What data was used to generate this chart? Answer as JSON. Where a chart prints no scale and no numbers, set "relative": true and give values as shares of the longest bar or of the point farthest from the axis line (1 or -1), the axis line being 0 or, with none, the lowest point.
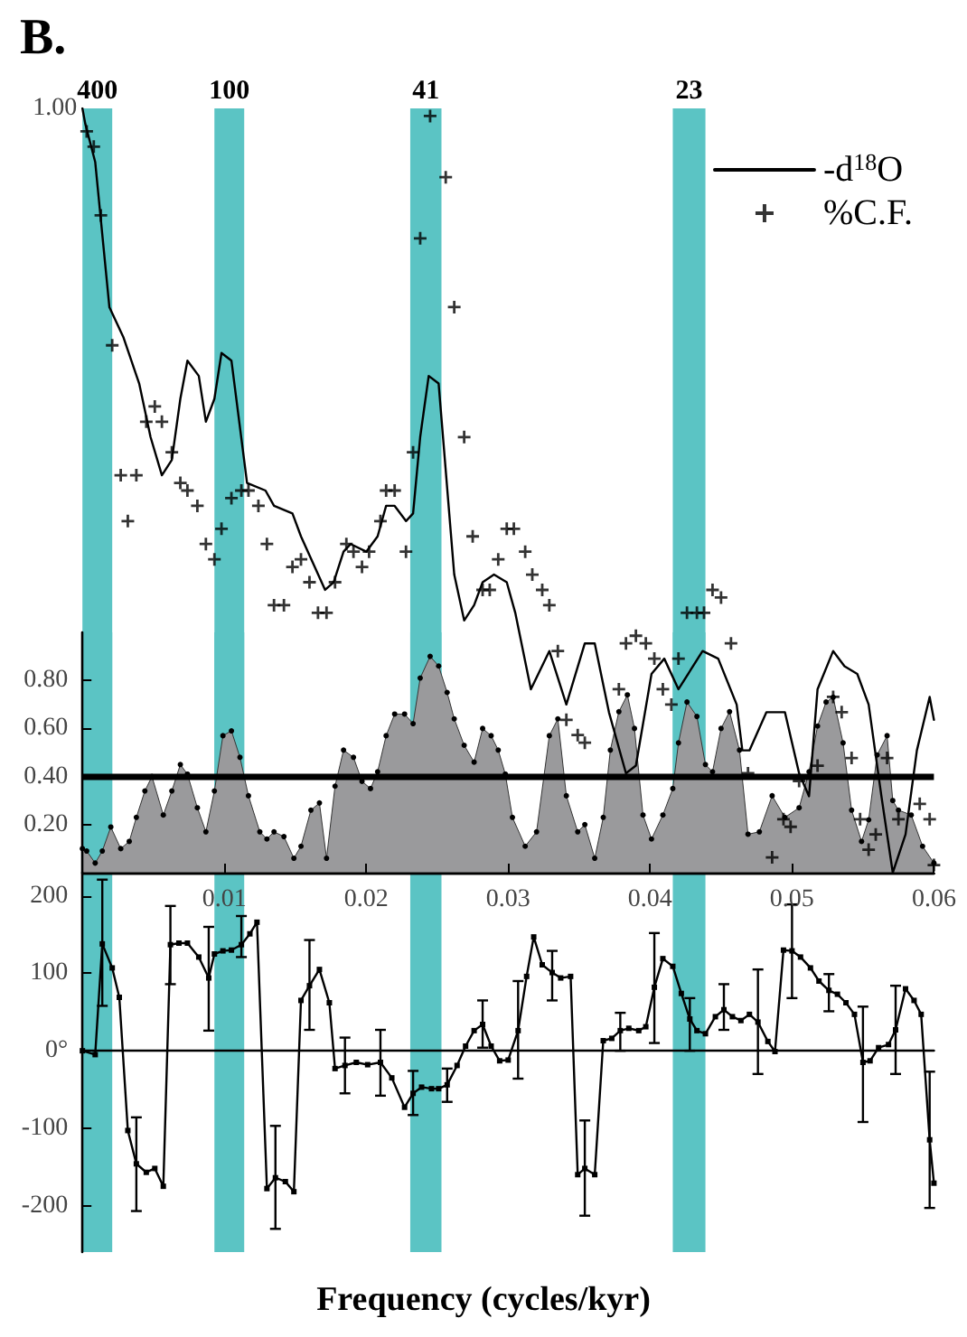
{
  "chart_data": [
    {
      "type": "line",
      "title": "B.",
      "relative": true,
      "xlim": [
        0,
        0.06
      ],
      "tick_labels": false,
      "legend": "top right",
      "annotations": [
        "1.00"
      ],
      "bands": [
        {
          "axis": "x",
          "from": 0,
          "to": 0.0021,
          "label": "400",
          "color": "#5bc4c4"
        },
        {
          "axis": "x",
          "from": 0.0093,
          "to": 0.0114,
          "label": "100",
          "color": "#5bc4c4"
        },
        {
          "axis": "x",
          "from": 0.0231,
          "to": 0.0253,
          "label": "41",
          "color": "#5bc4c4"
        },
        {
          "axis": "x",
          "from": 0.0416,
          "to": 0.0439,
          "label": "23",
          "color": "#5bc4c4"
        }
      ],
      "series": [
        {
          "name": "-d$^{18}$O",
          "type": "line",
          "color": "#000000",
          "marker": "none",
          "x": [
            0,
            0.0002,
            0.0009,
            0.0019,
            0.0029,
            0.004,
            0.0048,
            0.0056,
            0.0063,
            0.0069,
            0.0074,
            0.0082,
            0.0087,
            0.0093,
            0.0098,
            0.0105,
            0.0116,
            0.0129,
            0.0135,
            0.0148,
            0.0154,
            0.0171,
            0.0177,
            0.0184,
            0.0189,
            0.02,
            0.0208,
            0.0214,
            0.022,
            0.0228,
            0.0233,
            0.0238,
            0.0244,
            0.0251,
            0.0262,
            0.0269,
            0.0276,
            0.0282,
            0.029,
            0.0299,
            0.0305,
            0.0316,
            0.0329,
            0.0341,
            0.0354,
            0.0361,
            0.0371,
            0.0383,
            0.039,
            0.0401,
            0.041,
            0.042,
            0.0437,
            0.0448,
            0.0461,
            0.0465,
            0.047,
            0.0482,
            0.0495,
            0.0505,
            0.0512,
            0.0518,
            0.0529,
            0.0537,
            0.0546,
            0.0554,
            0.0563,
            0.0571,
            0.058,
            0.0588,
            0.0597,
            0.06
          ],
          "values": [
            1.0,
            0.98,
            0.93,
            0.74,
            0.7,
            0.64,
            0.57,
            0.52,
            0.54,
            0.62,
            0.67,
            0.65,
            0.59,
            0.62,
            0.68,
            0.67,
            0.51,
            0.5,
            0.48,
            0.47,
            0.44,
            0.37,
            0.38,
            0.42,
            0.43,
            0.42,
            0.44,
            0.48,
            0.48,
            0.46,
            0.47,
            0.57,
            0.65,
            0.64,
            0.39,
            0.33,
            0.35,
            0.38,
            0.39,
            0.38,
            0.34,
            0.24,
            0.29,
            0.22,
            0.3,
            0.3,
            0.21,
            0.13,
            0.14,
            0.26,
            0.28,
            0.24,
            0.29,
            0.28,
            0.22,
            0.16,
            0.16,
            0.21,
            0.21,
            0.13,
            0.1,
            0.24,
            0.29,
            0.27,
            0.26,
            0.22,
            0.1,
            0.0,
            0.05,
            0.16,
            0.23,
            0.2
          ]
        },
        {
          "name": "%C.F.",
          "type": "scatter",
          "color": "#000000",
          "marker": "cross",
          "x": [
            0.0003,
            0.0008,
            0.0013,
            0.0021,
            0.0027,
            0.0032,
            0.0038,
            0.0045,
            0.0051,
            0.0056,
            0.0063,
            0.0069,
            0.0074,
            0.0081,
            0.0087,
            0.0093,
            0.0098,
            0.0105,
            0.0112,
            0.0117,
            0.0124,
            0.013,
            0.0135,
            0.0142,
            0.0148,
            0.0154,
            0.016,
            0.0166,
            0.0172,
            0.0178,
            0.0186,
            0.0191,
            0.0197,
            0.0202,
            0.021,
            0.0214,
            0.022,
            0.0228,
            0.0233,
            0.0238,
            0.0245,
            0.0256,
            0.0262,
            0.0269,
            0.0275,
            0.0282,
            0.0287,
            0.0293,
            0.0299,
            0.0304,
            0.0312,
            0.0317,
            0.0324,
            0.0329,
            0.0335,
            0.0341,
            0.0349,
            0.0354,
            0.0378,
            0.0383,
            0.039,
            0.0397,
            0.0403,
            0.0409,
            0.0415,
            0.042,
            0.0426,
            0.0433,
            0.0438,
            0.0444,
            0.045,
            0.0457,
            0.0469,
            0.0486,
            0.0494,
            0.0499,
            0.0505,
            0.0518,
            0.0529,
            0.0535,
            0.0542,
            0.0548,
            0.0554,
            0.0559,
            0.0567,
            0.0575,
            0.059,
            0.0597,
            0.06
          ],
          "values": [
            0.97,
            0.95,
            0.86,
            0.69,
            0.52,
            0.46,
            0.52,
            0.59,
            0.61,
            0.59,
            0.55,
            0.51,
            0.5,
            0.48,
            0.43,
            0.41,
            0.45,
            0.49,
            0.5,
            0.5,
            0.48,
            0.43,
            0.35,
            0.35,
            0.4,
            0.41,
            0.38,
            0.34,
            0.34,
            0.38,
            0.43,
            0.42,
            0.4,
            0.42,
            0.46,
            0.5,
            0.5,
            0.42,
            0.55,
            0.83,
            0.99,
            0.91,
            0.74,
            0.57,
            0.44,
            0.37,
            0.37,
            0.41,
            0.45,
            0.45,
            0.42,
            0.39,
            0.37,
            0.35,
            0.29,
            0.2,
            0.18,
            0.17,
            0.24,
            0.3,
            0.31,
            0.3,
            0.28,
            0.24,
            0.22,
            0.28,
            0.34,
            0.34,
            0.34,
            0.37,
            0.36,
            0.3,
            0.13,
            0.02,
            0.07,
            0.06,
            0.12,
            0.14,
            0.23,
            0.21,
            0.15,
            0.07,
            0.03,
            0.05,
            0.15,
            0.07,
            0.09,
            0.07,
            0.01
          ]
        }
      ]
    },
    {
      "type": "area",
      "xlim": [
        0,
        0.06
      ],
      "xticks": [
        0.01,
        0.02,
        0.03,
        0.04,
        0.05,
        0.06
      ],
      "ylim": [
        0,
        1
      ],
      "yticks": [
        {
          "value": 0.2,
          "label": "0.20"
        },
        {
          "value": 0.4,
          "label": "0.40"
        },
        {
          "value": 0.6,
          "label": "0.60"
        },
        {
          "value": 0.8,
          "label": "0.80"
        }
      ],
      "bands": [
        {
          "axis": "x",
          "from": 0,
          "to": 0.0021,
          "color": "#5bc4c4"
        },
        {
          "axis": "x",
          "from": 0.0093,
          "to": 0.0114,
          "color": "#5bc4c4"
        },
        {
          "axis": "x",
          "from": 0.0231,
          "to": 0.0253,
          "color": "#5bc4c4"
        },
        {
          "axis": "x",
          "from": 0.0416,
          "to": 0.0439,
          "color": "#5bc4c4"
        }
      ],
      "ref_lines": [
        {
          "axis": "y",
          "value": 0.4,
          "color": "#000000"
        }
      ],
      "series": [
        {
          "color": "#9a9a9c",
          "marker": "circle",
          "x": [
            0,
            0.0003,
            0.0009,
            0.0014,
            0.002,
            0.0027,
            0.0033,
            0.0038,
            0.0044,
            0.0049,
            0.0057,
            0.0063,
            0.0069,
            0.0074,
            0.0081,
            0.0087,
            0.0093,
            0.0099,
            0.0105,
            0.0111,
            0.0117,
            0.0125,
            0.013,
            0.0135,
            0.0142,
            0.0149,
            0.0154,
            0.0161,
            0.0167,
            0.0172,
            0.0178,
            0.0184,
            0.0191,
            0.0197,
            0.0203,
            0.0208,
            0.0214,
            0.022,
            0.0227,
            0.0233,
            0.0238,
            0.0245,
            0.0251,
            0.0257,
            0.0262,
            0.0269,
            0.0276,
            0.0282,
            0.0288,
            0.0293,
            0.0298,
            0.0303,
            0.0312,
            0.032,
            0.0329,
            0.0335,
            0.0341,
            0.0349,
            0.0354,
            0.0361,
            0.0367,
            0.0372,
            0.0378,
            0.0384,
            0.0389,
            0.0395,
            0.0401,
            0.0409,
            0.0416,
            0.042,
            0.0426,
            0.0433,
            0.0439,
            0.0444,
            0.045,
            0.0456,
            0.0463,
            0.0469,
            0.0477,
            0.0486,
            0.0495,
            0.0505,
            0.0512,
            0.0518,
            0.0524,
            0.0529,
            0.0536,
            0.0542,
            0.0549,
            0.0554,
            0.056,
            0.0567,
            0.0571,
            0.0575,
            0.0584,
            0.0592,
            0.06
          ],
          "values": [
            0.1,
            0.09,
            0.04,
            0.09,
            0.19,
            0.1,
            0.13,
            0.23,
            0.34,
            0.4,
            0.24,
            0.34,
            0.45,
            0.41,
            0.27,
            0.17,
            0.34,
            0.57,
            0.59,
            0.48,
            0.32,
            0.17,
            0.14,
            0.17,
            0.15,
            0.06,
            0.11,
            0.26,
            0.29,
            0.06,
            0.36,
            0.51,
            0.48,
            0.38,
            0.35,
            0.42,
            0.57,
            0.66,
            0.66,
            0.62,
            0.81,
            0.9,
            0.86,
            0.75,
            0.64,
            0.53,
            0.46,
            0.6,
            0.57,
            0.51,
            0.41,
            0.23,
            0.11,
            0.17,
            0.57,
            0.64,
            0.32,
            0.17,
            0.2,
            0.06,
            0.23,
            0.51,
            0.67,
            0.74,
            0.6,
            0.24,
            0.14,
            0.24,
            0.35,
            0.54,
            0.71,
            0.65,
            0.45,
            0.42,
            0.6,
            0.67,
            0.51,
            0.16,
            0.17,
            0.32,
            0.23,
            0.27,
            0.42,
            0.61,
            0.71,
            0.73,
            0.54,
            0.26,
            0.13,
            0.22,
            0.49,
            0.57,
            0.3,
            0.26,
            0.24,
            0.11,
            0.04
          ]
        }
      ]
    },
    {
      "type": "line",
      "xlabel": "Frequency (cycles/kyr)",
      "xlim": [
        0,
        0.06
      ],
      "ylim": [
        -260,
        230
      ],
      "yticks": [
        200,
        100,
        {
          "value": 0,
          "label": "0°"
        },
        -100,
        -200
      ],
      "tick_labels": "y",
      "bands": [
        {
          "axis": "x",
          "from": 0,
          "to": 0.0021,
          "color": "#5bc4c4"
        },
        {
          "axis": "x",
          "from": 0.0093,
          "to": 0.0114,
          "color": "#5bc4c4"
        },
        {
          "axis": "x",
          "from": 0.0231,
          "to": 0.0253,
          "color": "#5bc4c4"
        },
        {
          "axis": "x",
          "from": 0.0416,
          "to": 0.0439,
          "color": "#5bc4c4"
        }
      ],
      "series": [
        {
          "color": "#000000",
          "marker": "square",
          "x": [
            0,
            0.0009,
            0.0014,
            0.0021,
            0.0026,
            0.0032,
            0.0038,
            0.0045,
            0.0051,
            0.0057,
            0.0062,
            0.0068,
            0.0074,
            0.0082,
            0.0089,
            0.0093,
            0.0099,
            0.0105,
            0.0112,
            0.0118,
            0.0123,
            0.013,
            0.0136,
            0.0143,
            0.0149,
            0.0154,
            0.016,
            0.0167,
            0.0174,
            0.0178,
            0.0185,
            0.0193,
            0.0201,
            0.021,
            0.0218,
            0.0227,
            0.0233,
            0.0239,
            0.0246,
            0.0251,
            0.0257,
            0.0264,
            0.027,
            0.0276,
            0.0282,
            0.0288,
            0.0294,
            0.03,
            0.0307,
            0.0313,
            0.0318,
            0.0324,
            0.0331,
            0.0337,
            0.0344,
            0.0349,
            0.0354,
            0.0361,
            0.0367,
            0.0373,
            0.0379,
            0.0385,
            0.0392,
            0.0397,
            0.0403,
            0.0409,
            0.0416,
            0.0422,
            0.0428,
            0.0433,
            0.0439,
            0.0446,
            0.0452,
            0.0458,
            0.0464,
            0.047,
            0.0476,
            0.0483,
            0.0488,
            0.0494,
            0.05,
            0.0506,
            0.0513,
            0.0519,
            0.0526,
            0.0532,
            0.0538,
            0.0544,
            0.055,
            0.0555,
            0.0561,
            0.0568,
            0.0573,
            0.058,
            0.0586,
            0.0591,
            0.0597,
            0.06
          ],
          "values": [
            0,
            -5,
            138,
            107,
            69,
            -103,
            -146,
            -157,
            -152,
            -175,
            137,
            139,
            139,
            121,
            94,
            125,
            129,
            130,
            137,
            151,
            166,
            -178,
            -164,
            -169,
            -182,
            65,
            84,
            105,
            62,
            -23,
            -19,
            -15,
            -18,
            -15,
            -35,
            -73,
            -55,
            -47,
            -49,
            -49,
            -44,
            -19,
            6,
            26,
            34,
            6,
            -13,
            -12,
            26,
            96,
            147,
            111,
            101,
            94,
            96,
            -160,
            -152,
            -160,
            13,
            16,
            26,
            29,
            26,
            31,
            82,
            119,
            109,
            74,
            41,
            26,
            22,
            44,
            53,
            44,
            39,
            47,
            37,
            12,
            -1,
            130,
            129,
            121,
            107,
            90,
            78,
            73,
            62,
            47,
            -15,
            -13,
            4,
            8,
            27,
            80,
            65,
            47,
            -115,
            -171
          ],
          "errors": [
            null,
            null,
            [
              58,
              221
            ],
            null,
            null,
            null,
            [
              -207,
              -86
            ],
            null,
            null,
            null,
            [
              86,
              187
            ],
            null,
            null,
            null,
            [
              26,
              160
            ],
            null,
            null,
            null,
            [
              121,
              174
            ],
            null,
            null,
            null,
            [
              -230,
              -97
            ],
            null,
            null,
            null,
            [
              27,
              143
            ],
            null,
            null,
            null,
            [
              -55,
              17
            ],
            null,
            null,
            [
              -58,
              27
            ],
            null,
            null,
            [
              -83,
              -26
            ],
            null,
            null,
            null,
            [
              -66,
              -23
            ],
            null,
            null,
            null,
            [
              4,
              65
            ],
            null,
            null,
            null,
            [
              -36,
              90
            ],
            null,
            null,
            null,
            [
              65,
              129
            ],
            null,
            null,
            null,
            [
              -213,
              -90
            ],
            null,
            null,
            null,
            [
              0,
              49
            ],
            null,
            null,
            null,
            [
              10,
              152
            ],
            null,
            null,
            null,
            [
              0,
              68
            ],
            null,
            null,
            null,
            [
              27,
              86
            ],
            null,
            null,
            null,
            [
              -30,
              105
            ],
            null,
            null,
            null,
            [
              68,
              189
            ],
            null,
            null,
            null,
            [
              51,
              99
            ],
            null,
            null,
            null,
            [
              -92,
              57
            ],
            null,
            null,
            null,
            [
              -30,
              84
            ],
            null,
            null,
            null,
            [
              -203,
              -27
            ],
            null
          ]
        }
      ]
    }
  ]
}
